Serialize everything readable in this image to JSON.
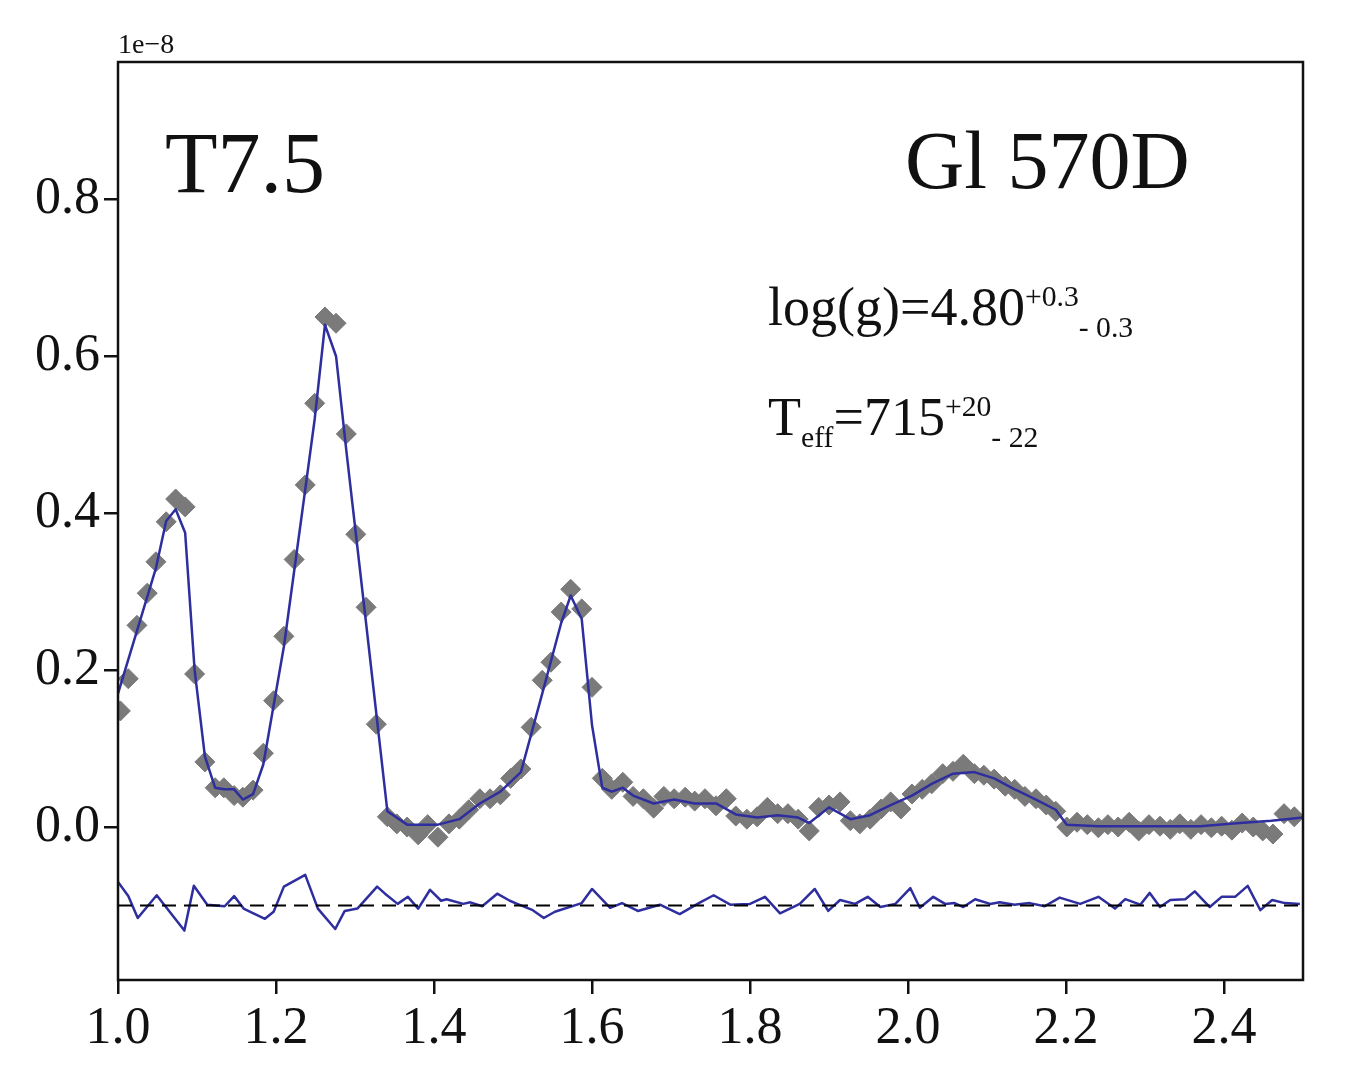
{
  "chart_data": {
    "type": "scatter",
    "annotations": [
      "1e−8",
      "T7.5",
      "Gl 570D",
      "log(g)=4.80$^{+0.3}$$_{- 0.3}$",
      "T$_{eff}$=715$^{+20}$$_{- 22}$"
    ],
    "xlim": [
      1.0,
      2.5
    ],
    "ylim": [
      -0.195,
      0.975
    ],
    "xticks": [
      {
        "value": 1.0,
        "label": "1.0"
      },
      {
        "value": 1.2,
        "label": "1.2"
      },
      {
        "value": 1.4,
        "label": "1.4"
      },
      {
        "value": 1.6,
        "label": "1.6"
      },
      {
        "value": 1.8,
        "label": "1.8"
      },
      {
        "value": 2.0,
        "label": "2.0"
      },
      {
        "value": 2.2,
        "label": "2.2"
      },
      {
        "value": 2.4,
        "label": "2.4"
      }
    ],
    "yticks": [
      {
        "value": 0.0,
        "label": "0.0"
      },
      {
        "value": 0.2,
        "label": "0.2"
      },
      {
        "value": 0.4,
        "label": "0.4"
      },
      {
        "value": 0.6,
        "label": "0.6"
      },
      {
        "value": 0.8,
        "label": "0.8"
      }
    ],
    "grid": false,
    "legend": false,
    "marker": "diamond",
    "ref_lines": [
      {
        "axis": "y",
        "value": -0.1,
        "color": "#000000",
        "line_style": "dashed"
      }
    ],
    "series": [
      {
        "color": "#7a7a7a",
        "x": [
          1.003,
          1.013,
          1.024,
          1.037,
          1.048,
          1.061,
          1.073,
          1.085,
          1.097,
          1.11,
          1.123,
          1.134,
          1.147,
          1.158,
          1.171,
          1.184,
          1.197,
          1.21,
          1.223,
          1.237,
          1.249,
          1.262,
          1.276,
          1.289,
          1.301,
          1.314,
          1.327,
          1.341,
          1.353,
          1.366,
          1.38,
          1.392,
          1.405,
          1.419,
          1.432,
          1.444,
          1.458,
          1.471,
          1.484,
          1.497,
          1.51,
          1.523,
          1.537,
          1.548,
          1.561,
          1.573,
          1.587,
          1.6,
          1.613,
          1.625,
          1.639,
          1.652,
          1.665,
          1.678,
          1.691,
          1.704,
          1.718,
          1.73,
          1.743,
          1.757,
          1.77,
          1.782,
          1.796,
          1.809,
          1.822,
          1.835,
          1.848,
          1.861,
          1.875,
          1.887,
          1.9,
          1.914,
          1.927,
          1.939,
          1.952,
          1.966,
          1.978,
          1.991,
          2.005,
          2.018,
          2.03,
          2.044,
          2.057,
          2.07,
          2.084,
          2.096,
          2.109,
          2.123,
          2.135,
          2.148,
          2.162,
          2.175,
          2.187,
          2.201,
          2.214,
          2.227,
          2.241,
          2.253,
          2.266,
          2.28,
          2.292,
          2.305,
          2.319,
          2.332,
          2.344,
          2.358,
          2.371,
          2.384,
          2.397,
          2.41,
          2.423,
          2.437,
          2.449,
          2.462,
          2.476,
          2.489
        ],
        "values": [
          0.148,
          0.189,
          0.257,
          0.298,
          0.338,
          0.389,
          0.418,
          0.408,
          0.195,
          0.083,
          0.05,
          0.05,
          0.04,
          0.038,
          0.047,
          0.094,
          0.161,
          0.243,
          0.341,
          0.436,
          0.54,
          0.65,
          0.642,
          0.501,
          0.373,
          0.28,
          0.131,
          0.013,
          0.004,
          0.0,
          -0.01,
          0.003,
          -0.013,
          0.004,
          0.01,
          0.022,
          0.036,
          0.036,
          0.041,
          0.062,
          0.074,
          0.127,
          0.187,
          0.21,
          0.274,
          0.303,
          0.278,
          0.178,
          0.062,
          0.048,
          0.057,
          0.039,
          0.036,
          0.024,
          0.039,
          0.036,
          0.038,
          0.033,
          0.036,
          0.027,
          0.036,
          0.014,
          0.01,
          0.013,
          0.025,
          0.017,
          0.017,
          0.01,
          -0.005,
          0.025,
          0.028,
          0.032,
          0.008,
          0.004,
          0.01,
          0.023,
          0.032,
          0.023,
          0.042,
          0.048,
          0.055,
          0.068,
          0.071,
          0.08,
          0.068,
          0.066,
          0.061,
          0.052,
          0.048,
          0.039,
          0.036,
          0.028,
          0.02,
          0.0,
          0.006,
          0.003,
          -0.001,
          0.003,
          0.0,
          0.006,
          -0.005,
          0.003,
          0.001,
          -0.003,
          0.004,
          -0.003,
          0.003,
          -0.001,
          0.001,
          -0.004,
          0.005,
          0.0,
          -0.005,
          -0.009,
          0.017,
          0.013
        ]
      },
      {
        "type": "line",
        "marker": "none",
        "color": "#2e2e9e",
        "x": [
          1.0,
          1.024,
          1.048,
          1.061,
          1.073,
          1.085,
          1.097,
          1.11,
          1.123,
          1.134,
          1.147,
          1.158,
          1.171,
          1.184,
          1.21,
          1.237,
          1.249,
          1.262,
          1.276,
          1.289,
          1.314,
          1.341,
          1.366,
          1.405,
          1.432,
          1.458,
          1.484,
          1.51,
          1.537,
          1.561,
          1.573,
          1.587,
          1.6,
          1.613,
          1.625,
          1.639,
          1.652,
          1.678,
          1.704,
          1.73,
          1.757,
          1.782,
          1.809,
          1.835,
          1.861,
          1.875,
          1.9,
          1.927,
          1.952,
          1.978,
          2.005,
          2.03,
          2.057,
          2.084,
          2.109,
          2.135,
          2.162,
          2.187,
          2.201,
          2.241,
          2.3,
          2.37,
          2.42,
          2.46,
          2.5
        ],
        "values": [
          0.17,
          0.25,
          0.33,
          0.39,
          0.405,
          0.375,
          0.2,
          0.09,
          0.05,
          0.048,
          0.048,
          0.035,
          0.042,
          0.08,
          0.23,
          0.43,
          0.52,
          0.64,
          0.6,
          0.48,
          0.26,
          0.02,
          0.003,
          0.003,
          0.01,
          0.03,
          0.045,
          0.07,
          0.17,
          0.26,
          0.295,
          0.265,
          0.13,
          0.05,
          0.045,
          0.05,
          0.04,
          0.03,
          0.035,
          0.03,
          0.03,
          0.016,
          0.012,
          0.015,
          0.012,
          0.005,
          0.025,
          0.01,
          0.015,
          0.028,
          0.04,
          0.055,
          0.068,
          0.07,
          0.062,
          0.048,
          0.035,
          0.022,
          0.003,
          0.001,
          0.001,
          0.001,
          0.005,
          0.008,
          0.012
        ]
      },
      {
        "type": "line",
        "marker": "none",
        "color": "#2e2e9e",
        "x": [
          1.0,
          1.013,
          1.025,
          1.049,
          1.084,
          1.096,
          1.113,
          1.135,
          1.147,
          1.159,
          1.186,
          1.197,
          1.21,
          1.237,
          1.253,
          1.275,
          1.287,
          1.303,
          1.328,
          1.338,
          1.354,
          1.367,
          1.38,
          1.395,
          1.409,
          1.416,
          1.437,
          1.446,
          1.461,
          1.48,
          1.496,
          1.503,
          1.525,
          1.539,
          1.553,
          1.587,
          1.6,
          1.623,
          1.638,
          1.658,
          1.686,
          1.711,
          1.737,
          1.754,
          1.775,
          1.8,
          1.819,
          1.838,
          1.863,
          1.882,
          1.899,
          1.914,
          1.933,
          1.949,
          1.965,
          1.984,
          2.003,
          2.015,
          2.032,
          2.047,
          2.059,
          2.07,
          2.085,
          2.104,
          2.116,
          2.135,
          2.154,
          2.173,
          2.192,
          2.218,
          2.241,
          2.262,
          2.275,
          2.294,
          2.306,
          2.319,
          2.332,
          2.351,
          2.363,
          2.382,
          2.397,
          2.414,
          2.43,
          2.446,
          2.461,
          2.477,
          2.496
        ],
        "values": [
          -0.07,
          -0.088,
          -0.116,
          -0.087,
          -0.132,
          -0.075,
          -0.099,
          -0.101,
          -0.088,
          -0.104,
          -0.117,
          -0.108,
          -0.076,
          -0.061,
          -0.104,
          -0.13,
          -0.107,
          -0.104,
          -0.076,
          -0.085,
          -0.098,
          -0.089,
          -0.104,
          -0.08,
          -0.094,
          -0.092,
          -0.098,
          -0.096,
          -0.101,
          -0.085,
          -0.094,
          -0.097,
          -0.106,
          -0.116,
          -0.108,
          -0.097,
          -0.079,
          -0.103,
          -0.097,
          -0.107,
          -0.099,
          -0.111,
          -0.096,
          -0.087,
          -0.099,
          -0.098,
          -0.089,
          -0.11,
          -0.098,
          -0.079,
          -0.107,
          -0.093,
          -0.098,
          -0.089,
          -0.102,
          -0.098,
          -0.078,
          -0.103,
          -0.089,
          -0.098,
          -0.097,
          -0.102,
          -0.092,
          -0.098,
          -0.096,
          -0.099,
          -0.097,
          -0.101,
          -0.09,
          -0.098,
          -0.089,
          -0.104,
          -0.092,
          -0.099,
          -0.084,
          -0.102,
          -0.093,
          -0.092,
          -0.082,
          -0.102,
          -0.089,
          -0.089,
          -0.075,
          -0.106,
          -0.093,
          -0.097,
          -0.098
        ]
      }
    ]
  }
}
